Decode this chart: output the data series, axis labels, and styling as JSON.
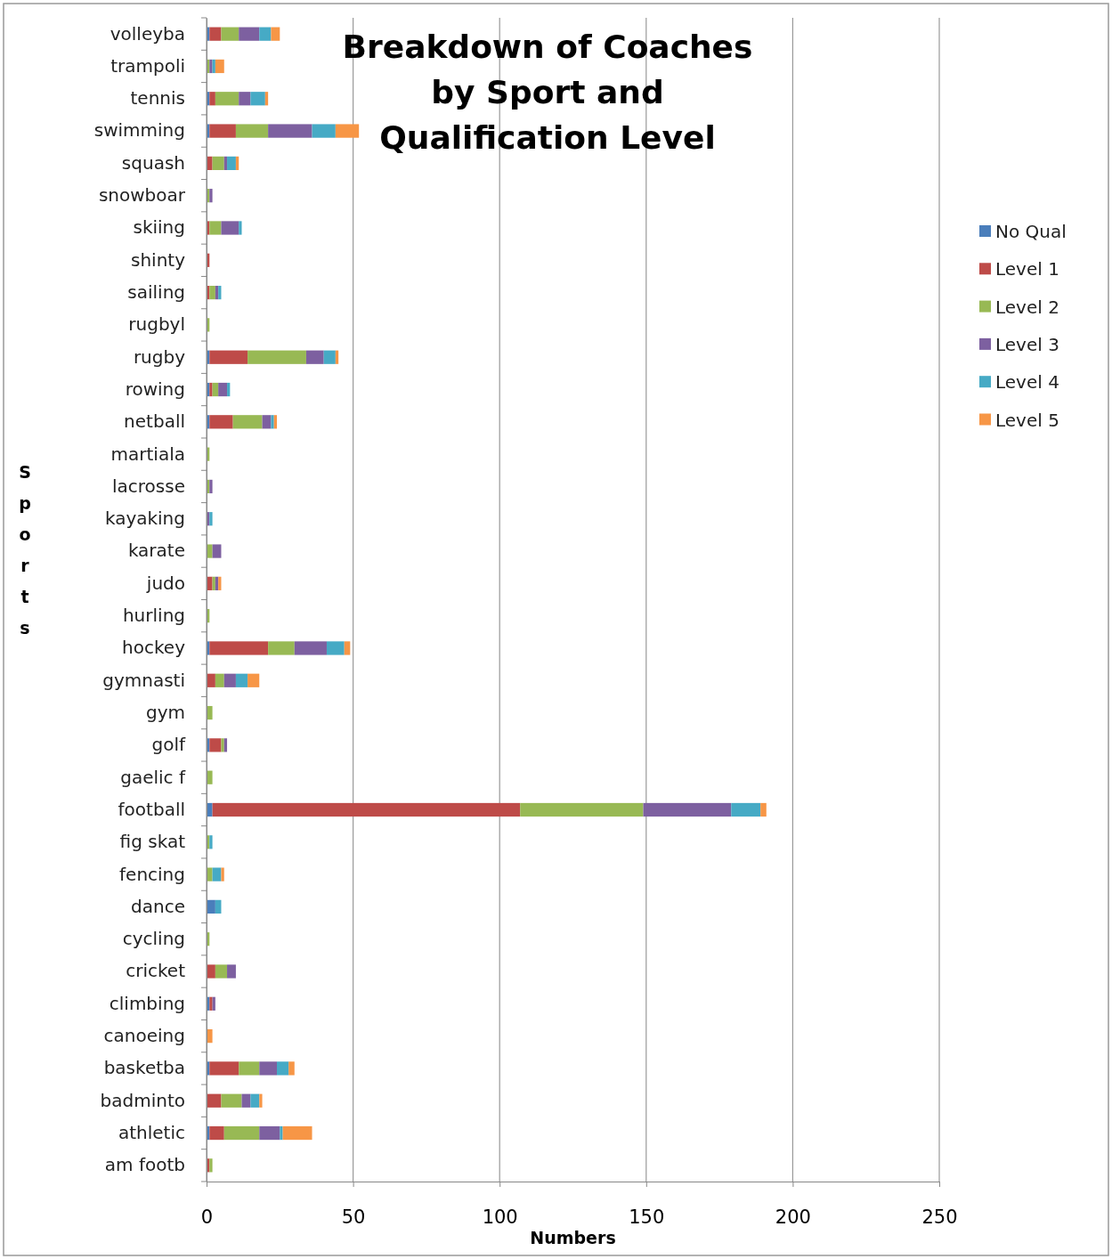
{
  "chart_data": {
    "type": "bar",
    "orientation": "horizontal",
    "stacked": true,
    "title": "Breakdown of Coaches by Sport and Qualification Level",
    "xlabel": "Numbers",
    "ylabel": "Sports",
    "categories": [
      "volleyba",
      "trampoli",
      "tennis",
      "swimming",
      "squash",
      "snowboar",
      "skiing",
      "shinty",
      "sailing",
      "rugbyl",
      "rugby",
      "rowing",
      "netball",
      "martiala",
      "lacrosse",
      "kayaking",
      "karate",
      "judo",
      "hurling",
      "hockey",
      "gymnasti",
      "gym",
      "golf",
      "gaelic f",
      "football",
      "fig skat",
      "fencing",
      "dance",
      "cycling",
      "cricket",
      "climbing",
      "canoeing",
      "basketba",
      "badminto",
      "athletic",
      "am footb"
    ],
    "series": [
      {
        "name": "No Qual",
        "color": "#4a7ebb",
        "values": [
          1,
          0,
          1,
          1,
          0,
          0,
          0,
          0,
          0,
          0,
          1,
          1,
          1,
          0,
          0,
          0,
          0,
          0,
          0,
          1,
          0,
          0,
          1,
          0,
          2,
          0,
          0,
          3,
          0,
          0,
          1,
          0,
          1,
          0,
          1,
          0
        ]
      },
      {
        "name": "Level 1",
        "color": "#be4b48",
        "values": [
          4,
          0,
          2,
          9,
          2,
          0,
          1,
          1,
          1,
          0,
          13,
          1,
          8,
          0,
          0,
          0,
          0,
          2,
          0,
          20,
          3,
          0,
          4,
          0,
          105,
          0,
          0,
          0,
          0,
          3,
          1,
          0,
          10,
          5,
          5,
          1
        ]
      },
      {
        "name": "Level 2",
        "color": "#98b954",
        "values": [
          6,
          1,
          8,
          11,
          4,
          1,
          4,
          0,
          2,
          1,
          20,
          2,
          10,
          1,
          1,
          0,
          2,
          1,
          1,
          9,
          3,
          2,
          1,
          2,
          42,
          1,
          2,
          0,
          1,
          4,
          0,
          0,
          7,
          7,
          12,
          1
        ]
      },
      {
        "name": "Level 3",
        "color": "#7d60a0",
        "values": [
          7,
          1,
          4,
          15,
          1,
          1,
          6,
          0,
          1,
          0,
          6,
          3,
          3,
          0,
          1,
          1,
          3,
          1,
          0,
          11,
          4,
          0,
          1,
          0,
          30,
          0,
          0,
          0,
          0,
          3,
          1,
          0,
          6,
          3,
          7,
          0
        ]
      },
      {
        "name": "Level 4",
        "color": "#46aac5",
        "values": [
          4,
          1,
          5,
          8,
          3,
          0,
          1,
          0,
          1,
          0,
          4,
          1,
          1,
          0,
          0,
          1,
          0,
          0,
          0,
          6,
          4,
          0,
          0,
          0,
          10,
          1,
          3,
          2,
          0,
          0,
          0,
          0,
          4,
          3,
          1,
          0
        ]
      },
      {
        "name": "Level 5",
        "color": "#f79646",
        "values": [
          3,
          3,
          1,
          8,
          1,
          0,
          0,
          0,
          0,
          0,
          1,
          0,
          1,
          0,
          0,
          0,
          0,
          1,
          0,
          2,
          4,
          0,
          0,
          0,
          2,
          0,
          1,
          0,
          0,
          0,
          0,
          2,
          2,
          1,
          10,
          0
        ]
      }
    ],
    "xlim": [
      0,
      250
    ],
    "xticks": [
      0,
      50,
      100,
      150,
      200,
      250
    ],
    "grid": "x",
    "legend": "right"
  }
}
